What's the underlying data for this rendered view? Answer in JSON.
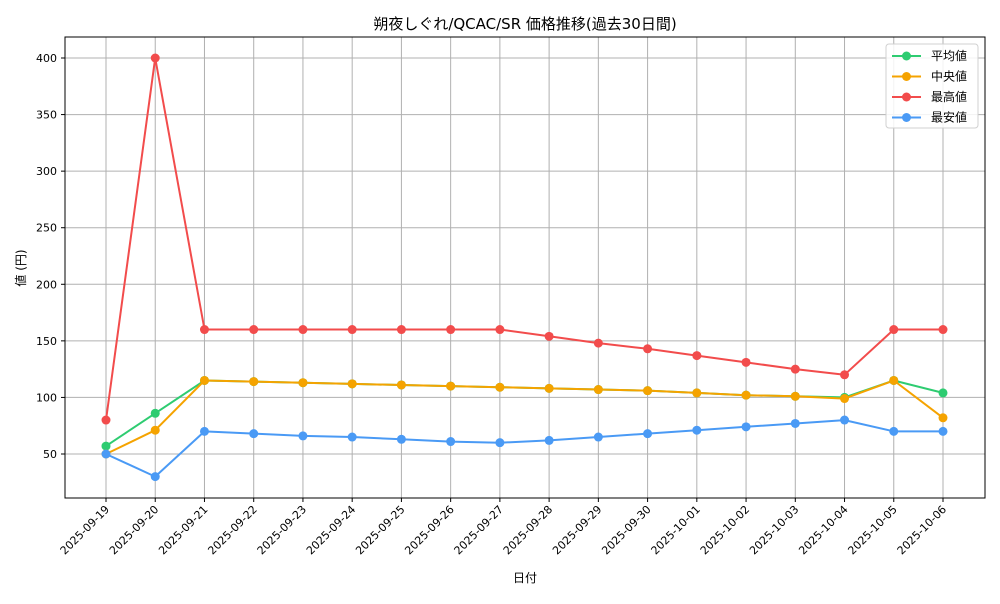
{
  "chart_data": {
    "type": "line",
    "title": "朔夜しぐれ/QCAC/SR 価格推移(過去30日間)",
    "xlabel": "日付",
    "ylabel": "値 (円)",
    "x": [
      "2025-09-19",
      "2025-09-20",
      "2025-09-21",
      "2025-09-22",
      "2025-09-23",
      "2025-09-24",
      "2025-09-25",
      "2025-09-26",
      "2025-09-27",
      "2025-09-28",
      "2025-09-29",
      "2025-09-30",
      "2025-10-01",
      "2025-10-02",
      "2025-10-03",
      "2025-10-04",
      "2025-10-05",
      "2025-10-06"
    ],
    "ylim": [
      10,
      420
    ],
    "yticks": [
      50,
      100,
      150,
      200,
      250,
      300,
      350,
      400
    ],
    "grid": true,
    "legend_position": "upper right",
    "series": [
      {
        "name": "平均値",
        "color": "#2ecc71",
        "values": [
          57,
          86,
          115,
          114,
          113,
          112,
          111,
          110,
          109,
          108,
          107,
          106,
          104,
          102,
          101,
          100,
          115,
          104
        ]
      },
      {
        "name": "中央値",
        "color": "#f5a300",
        "values": [
          50,
          71,
          115,
          114,
          113,
          112,
          111,
          110,
          109,
          108,
          107,
          106,
          104,
          102,
          101,
          99,
          115,
          82
        ]
      },
      {
        "name": "最高値",
        "color": "#f24c4c",
        "values": [
          80,
          400,
          160,
          160,
          160,
          160,
          160,
          160,
          160,
          154,
          148,
          143,
          137,
          131,
          125,
          120,
          160,
          160
        ]
      },
      {
        "name": "最安値",
        "color": "#4a9af5",
        "values": [
          50,
          30,
          70,
          68,
          66,
          65,
          63,
          61,
          60,
          62,
          65,
          68,
          71,
          74,
          77,
          80,
          70,
          70
        ]
      }
    ]
  }
}
